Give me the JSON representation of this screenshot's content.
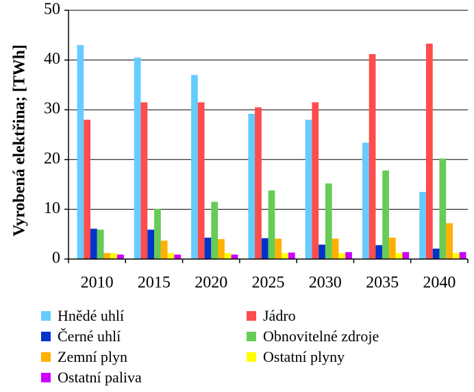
{
  "chart_data": {
    "type": "bar",
    "ylabel": "Vyrobená elektřina; [TWh]",
    "ylim": [
      0,
      50
    ],
    "yticks": [
      0,
      10,
      20,
      30,
      40,
      50
    ],
    "ytick_labels": [
      "0",
      "10",
      "20",
      "30",
      "40",
      "50"
    ],
    "grid": true,
    "legend_position": "bottom",
    "categories": [
      "2010",
      "2015",
      "2020",
      "2025",
      "2030",
      "2035",
      "2040"
    ],
    "series": [
      {
        "name": "Hnědé uhlí",
        "color": "#66ccff",
        "values": [
          43,
          40.5,
          37,
          29.2,
          28,
          23.4,
          13.5
        ]
      },
      {
        "name": "Jádro",
        "color": "#ff4c4c",
        "values": [
          28,
          31.5,
          31.5,
          30.5,
          31.5,
          41.2,
          43.3
        ]
      },
      {
        "name": "Černé uhlí",
        "color": "#0033cc",
        "values": [
          6.1,
          5.9,
          4.3,
          4.2,
          2.9,
          2.8,
          2.1
        ]
      },
      {
        "name": "Obnovitelné zdroje",
        "color": "#66cc55",
        "values": [
          5.9,
          10.1,
          11.5,
          13.8,
          15.2,
          17.8,
          20.2
        ]
      },
      {
        "name": "Zemní plyn",
        "color": "#ffb000",
        "values": [
          1.2,
          3.7,
          4,
          4.1,
          4.1,
          4.3,
          7.2
        ]
      },
      {
        "name": "Ostatní plyny",
        "color": "#ffff00",
        "values": [
          1.2,
          1.2,
          1.2,
          1.2,
          1.2,
          1.2,
          1.2
        ]
      },
      {
        "name": "Ostatní paliva",
        "color": "#cc00ff",
        "values": [
          0.9,
          0.9,
          0.9,
          1.3,
          1.4,
          1.4,
          1.4
        ]
      }
    ]
  }
}
